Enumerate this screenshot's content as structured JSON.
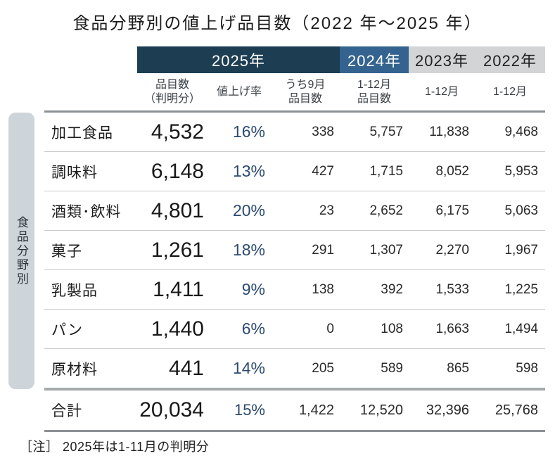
{
  "title": "食品分野別の値上げ品目数（2022 年～2025 年）",
  "side_label": "食品分野別",
  "note": "［注］ 2025年は1-11月の判明分",
  "header": {
    "year_groups": [
      {
        "label": "2025年",
        "style": "dark"
      },
      {
        "label": "2024年",
        "style": "blue"
      },
      {
        "label": "2023年",
        "style": "gray"
      },
      {
        "label": "2022年",
        "style": "gray"
      }
    ],
    "sub_columns": [
      "品目数\n（判明分）",
      "値上げ率",
      "うち9月\n品目数",
      "1-12月\n品目数",
      "1-12月",
      "1-12月"
    ]
  },
  "colors": {
    "band_2025": "#1d3d52",
    "band_2024": "#34638f",
    "band_gray": "#d2d4d6",
    "side_pill": "#ced5da",
    "rate_text": "#2b4a70"
  },
  "chart_data": {
    "type": "table",
    "title": "食品分野別の値上げ品目数（2022 年～2025 年）",
    "row_axis_label": "食品分野別",
    "column_groups": [
      "2025年",
      "2025年",
      "2025年",
      "2024年",
      "2023年",
      "2022年"
    ],
    "columns": [
      "品目数（判明分）",
      "値上げ率",
      "うち9月品目数",
      "1-12月品目数",
      "1-12月",
      "1-12月"
    ],
    "rows": [
      {
        "category": "加工食品",
        "values": [
          "4,532",
          "16%",
          "338",
          "5,757",
          "11,838",
          "9,468"
        ]
      },
      {
        "category": "調味料",
        "values": [
          "6,148",
          "13%",
          "427",
          "1,715",
          "8,052",
          "5,953"
        ]
      },
      {
        "category": "酒類･飲料",
        "values": [
          "4,801",
          "20%",
          "23",
          "2,652",
          "6,175",
          "5,063"
        ]
      },
      {
        "category": "菓子",
        "values": [
          "1,261",
          "18%",
          "291",
          "1,307",
          "2,270",
          "1,967"
        ]
      },
      {
        "category": "乳製品",
        "values": [
          "1,411",
          "9%",
          "138",
          "392",
          "1,533",
          "1,225"
        ]
      },
      {
        "category": "パン",
        "values": [
          "1,440",
          "6%",
          "0",
          "108",
          "1,663",
          "1,494"
        ]
      },
      {
        "category": "原材料",
        "values": [
          "441",
          "14%",
          "205",
          "589",
          "865",
          "598"
        ]
      }
    ],
    "total": {
      "category": "合計",
      "values": [
        "20,034",
        "15%",
        "1,422",
        "12,520",
        "32,396",
        "25,768"
      ]
    },
    "note": "［注］ 2025年は1-11月の判明分"
  }
}
